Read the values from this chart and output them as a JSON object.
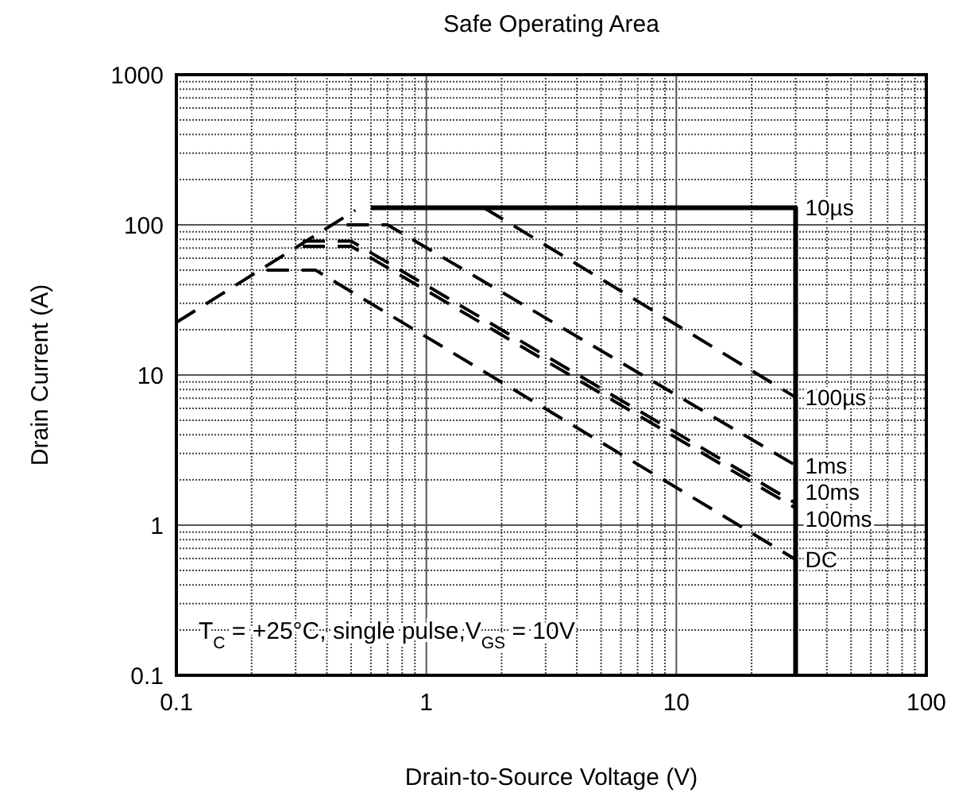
{
  "chart_data": {
    "type": "line",
    "title": "Safe Operating Area",
    "xlabel": "Drain-to-Source Voltage (V)",
    "ylabel": "Drain Current (A)",
    "log": "xy",
    "grid": true,
    "xlim": [
      0.1,
      100
    ],
    "ylim": [
      0.1,
      1000
    ],
    "xticks": [
      0.1,
      1,
      10,
      100
    ],
    "yticks": [
      0.1,
      1,
      10,
      100,
      1000
    ],
    "series": [
      {
        "color": "#000000",
        "line_style": "dashed",
        "x": [
          0.1,
          0.52
        ],
        "values": [
          22.4,
          125
        ]
      },
      {
        "name": "10µs",
        "color": "#000000",
        "line_style": "solid",
        "x": [
          0.6,
          30,
          30
        ],
        "values": [
          130,
          130,
          0.1
        ]
      },
      {
        "name": "100µs",
        "color": "#000000",
        "line_style": "dashed",
        "x": [
          1.7,
          30
        ],
        "values": [
          130,
          7.1
        ]
      },
      {
        "name": "1ms",
        "color": "#000000",
        "line_style": "dashed",
        "x": [
          0.48,
          0.7,
          30
        ],
        "values": [
          100,
          100,
          2.5
        ]
      },
      {
        "name": "10ms",
        "color": "#000000",
        "line_style": "dashed",
        "x": [
          0.32,
          0.5,
          30
        ],
        "values": [
          78,
          78,
          1.4
        ]
      },
      {
        "name": "100ms",
        "color": "#000000",
        "line_style": "dashed",
        "x": [
          0.32,
          0.5,
          30
        ],
        "values": [
          72,
          72,
          1.3
        ]
      },
      {
        "name": "DC",
        "color": "#000000",
        "line_style": "dashed",
        "x": [
          0.23,
          0.36,
          30
        ],
        "values": [
          50,
          50,
          0.59
        ]
      }
    ],
    "annotations": [
      "T$_{C}$ = +25°C, single pulse,V$_{GS}$ = 10V"
    ]
  }
}
